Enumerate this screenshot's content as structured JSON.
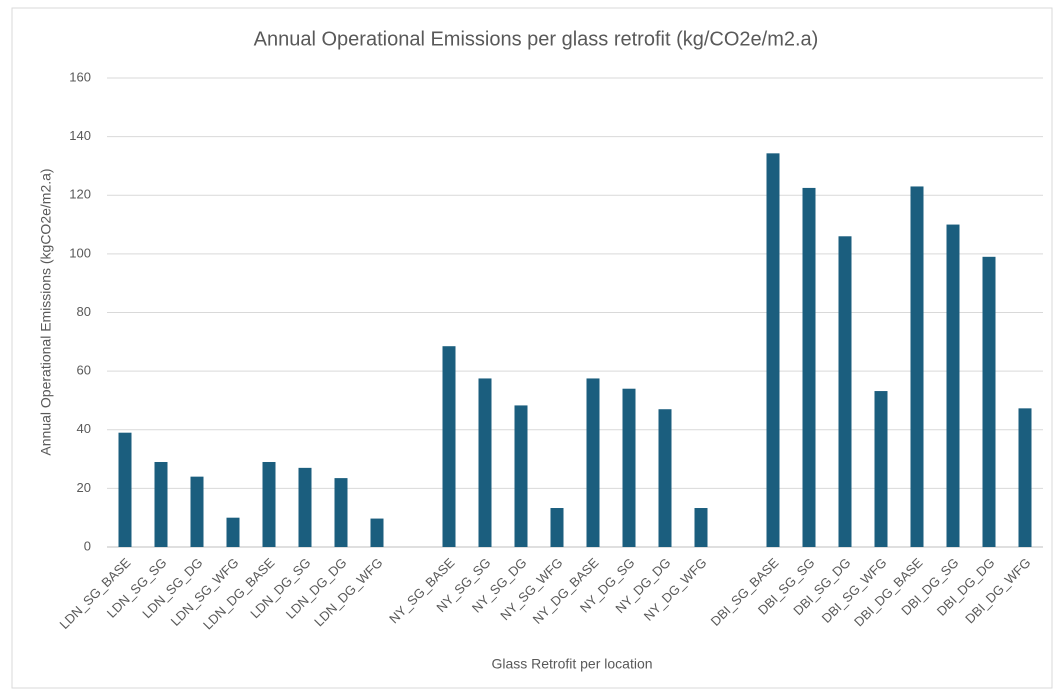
{
  "chart_data": {
    "type": "bar",
    "title": "Annual Operational Emissions per glass retrofit (kg/CO2e/m2.a)",
    "x_label": "Glass Retrofit per location",
    "y_label": "Annual Operational Emissions (kgCO2e/m2.a)",
    "categories": [
      "LDN_SG_BASE",
      "LDN_SG_SG",
      "LDN_SG_DG",
      "LDN_SG_WFG",
      "LDN_DG_BASE",
      "LDN_DG_SG",
      "LDN_DG_DG",
      "LDN_DG_WFG",
      null,
      "NY_SG_BASE",
      "NY_SG_SG",
      "NY_SG_DG",
      "NY_SG_WFG",
      "NY_DG_BASE",
      "NY_DG_SG",
      "NY_DG_DG",
      "NY_DG_WFG",
      null,
      "DBI_SG_BASE",
      "DBI_SG_SG",
      "DBI_SG_DG",
      "DBI_SG_WFG",
      "DBI_DG_BASE",
      "DBI_DG_SG",
      "DBI_DG_DG",
      "DBI_DG_WFG"
    ],
    "values": [
      39,
      29,
      24,
      10,
      29,
      27,
      23.5,
      9.7,
      null,
      68.5,
      57.5,
      48.3,
      13.3,
      57.5,
      54,
      47,
      13.3,
      null,
      134.3,
      122.5,
      106,
      53.2,
      123,
      110,
      99,
      47.3
    ],
    "color": "#1b5e7e",
    "ylim": [
      0,
      160
    ],
    "yticks": [
      0,
      20,
      40,
      60,
      80,
      100,
      120,
      140,
      160
    ],
    "grid": true
  }
}
